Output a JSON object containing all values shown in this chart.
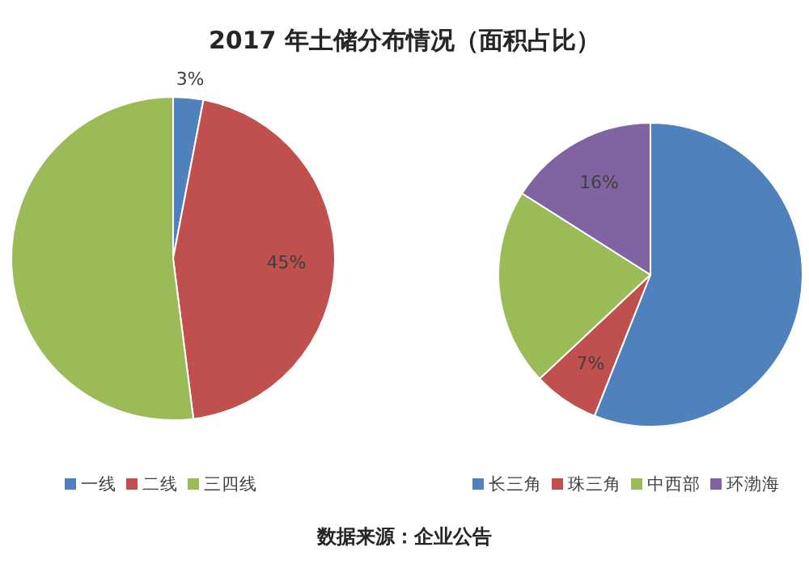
{
  "chart_data": [
    {
      "type": "pie",
      "title": "2017 年土储分布情况（面积占比）",
      "categories": [
        "一线",
        "二线",
        "三四线"
      ],
      "values": [
        3,
        45,
        52
      ],
      "colors": [
        "#4f81bd",
        "#c0504d",
        "#9bbb59"
      ],
      "value_labels": [
        "3%",
        "45%",
        null
      ],
      "legend": "bottom",
      "annotations": [
        "数据来源：企业公告"
      ]
    },
    {
      "type": "pie",
      "categories": [
        "长三角",
        "珠三角",
        "中西部",
        "环渤海"
      ],
      "values": [
        56,
        7,
        21,
        16
      ],
      "colors": [
        "#4f81bd",
        "#c0504d",
        "#9bbb59",
        "#8064a2"
      ],
      "value_labels": [
        null,
        "7%",
        null,
        "16%"
      ],
      "legend": "bottom"
    }
  ]
}
